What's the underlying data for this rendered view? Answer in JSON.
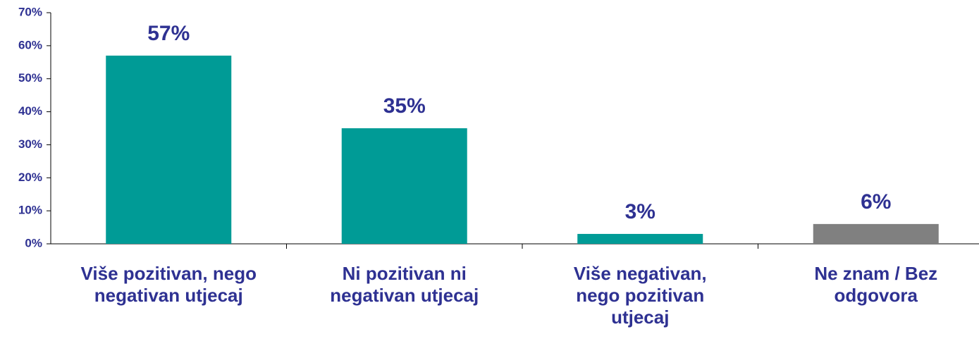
{
  "chart_data": {
    "type": "bar",
    "categories": [
      "Više pozitivan, nego negativan utjecaj",
      "Ni pozitivan ni negativan utjecaj",
      "Više negativan, nego pozitivan utjecaj",
      "Ne znam / Bez odgovora"
    ],
    "values": [
      57,
      35,
      3,
      6
    ],
    "value_labels": [
      "57%",
      "35%",
      "3%",
      "6%"
    ],
    "colors": [
      "#009b96",
      "#009b96",
      "#009b96",
      "#808080"
    ],
    "ylim": [
      0,
      70
    ],
    "yticks": [
      {
        "value": 0,
        "label": "0%"
      },
      {
        "value": 10,
        "label": "10%"
      },
      {
        "value": 20,
        "label": "20%"
      },
      {
        "value": 30,
        "label": "30%"
      },
      {
        "value": 40,
        "label": "40%"
      },
      {
        "value": 50,
        "label": "50%"
      },
      {
        "value": 60,
        "label": "60%"
      },
      {
        "value": 70,
        "label": "70%"
      }
    ],
    "grid": false
  }
}
